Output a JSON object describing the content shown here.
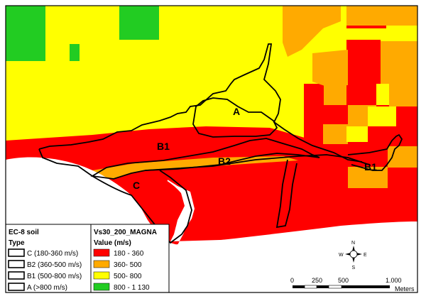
{
  "zone_labels": {
    "a": "A",
    "b1_west": "B1",
    "b2": "B2",
    "b1_east": "B1",
    "c": "C"
  },
  "colors": {
    "band_180_360": "#ff0000",
    "band_360_500": "#ffaa00",
    "band_500_800": "#ffff00",
    "band_800_1130": "#22cc22",
    "sea": "#ffffff",
    "boundary": "#000000"
  },
  "legend_soil": {
    "title": "EC-8 soil",
    "subtitle": "Type",
    "items": [
      "C (180-360 m/s)",
      "B2 (360-500 m/s)",
      "B1 (500-800 m/s)",
      "A (>800 m/s)"
    ]
  },
  "legend_vs30": {
    "title": "Vs30_200_MAGNA",
    "subtitle": "Value (m/s)",
    "items": [
      {
        "label": "180 - 360",
        "color": "#ff0000"
      },
      {
        "label": "360- 500",
        "color": "#ffaa00"
      },
      {
        "label": "500- 800",
        "color": "#ffff00"
      },
      {
        "label": "800 - 1 130",
        "color": "#22cc22"
      }
    ]
  },
  "compass": {
    "n": "N",
    "s": "S",
    "e": "E",
    "w": "W"
  },
  "scale_bar": {
    "ticks": [
      "0",
      "250",
      "500",
      "1.000"
    ],
    "unit": "Meters"
  }
}
